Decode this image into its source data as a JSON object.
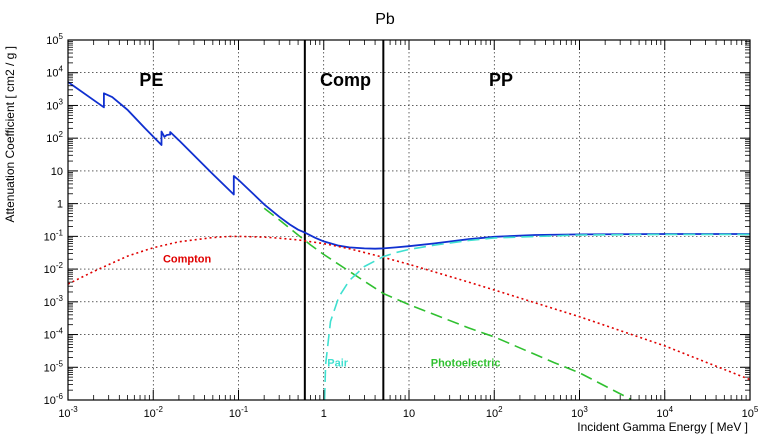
{
  "chart_data": {
    "type": "line",
    "title": "Pb",
    "xlabel": "Incident Gamma Energy [ MeV ]",
    "ylabel": "Attenuation Coefficient [ cm2 / g ]",
    "x_scale": "log",
    "y_scale": "log",
    "xlim": [
      0.001,
      100000
    ],
    "ylim": [
      1e-06,
      100000
    ],
    "grid": true,
    "x_ticks": [
      {
        "base": "10",
        "exp": "-3",
        "value": 0.001
      },
      {
        "base": "10",
        "exp": "-2",
        "value": 0.01
      },
      {
        "base": "10",
        "exp": "-1",
        "value": 0.1
      },
      {
        "base": "1",
        "exp": "",
        "value": 1
      },
      {
        "base": "10",
        "exp": "",
        "value": 10
      },
      {
        "base": "10",
        "exp": "2",
        "value": 100
      },
      {
        "base": "10",
        "exp": "3",
        "value": 1000
      },
      {
        "base": "10",
        "exp": "4",
        "value": 10000
      },
      {
        "base": "10",
        "exp": "5",
        "value": 100000
      }
    ],
    "y_ticks": [
      {
        "base": "10",
        "exp": "-6",
        "value": 1e-06
      },
      {
        "base": "10",
        "exp": "-5",
        "value": 1e-05
      },
      {
        "base": "10",
        "exp": "-4",
        "value": 0.0001
      },
      {
        "base": "10",
        "exp": "-3",
        "value": 0.001
      },
      {
        "base": "10",
        "exp": "-2",
        "value": 0.01
      },
      {
        "base": "10",
        "exp": "-1",
        "value": 0.1
      },
      {
        "base": "1",
        "exp": "",
        "value": 1
      },
      {
        "base": "10",
        "exp": "",
        "value": 10
      },
      {
        "base": "10",
        "exp": "2",
        "value": 100
      },
      {
        "base": "10",
        "exp": "3",
        "value": 1000
      },
      {
        "base": "10",
        "exp": "4",
        "value": 10000
      },
      {
        "base": "10",
        "exp": "5",
        "value": 100000
      }
    ],
    "region_boundaries_mev": [
      0.6,
      5
    ],
    "region_labels": [
      {
        "text": "PE",
        "x": 0.0095,
        "y": 4000
      },
      {
        "text": "Comp",
        "x": 1.8,
        "y": 4000
      },
      {
        "text": "PP",
        "x": 120,
        "y": 4000
      }
    ],
    "series": [
      {
        "name": "Total",
        "color": "#1030d0",
        "style": "solid",
        "label": "",
        "points": [
          [
            0.001,
            5200
          ],
          [
            0.00264,
            880
          ],
          [
            0.00264,
            2350
          ],
          [
            0.0033,
            1800
          ],
          [
            0.005,
            730
          ],
          [
            0.008,
            200
          ],
          [
            0.0125,
            62
          ],
          [
            0.0125,
            160
          ],
          [
            0.0135,
            110
          ],
          [
            0.0144,
            125
          ],
          [
            0.0158,
            130
          ],
          [
            0.0158,
            155
          ],
          [
            0.02,
            86
          ],
          [
            0.03,
            30
          ],
          [
            0.05,
            8.0
          ],
          [
            0.088,
            1.9
          ],
          [
            0.088,
            7.0
          ],
          [
            0.1,
            5.3
          ],
          [
            0.15,
            1.95
          ],
          [
            0.2,
            0.95
          ],
          [
            0.3,
            0.4
          ],
          [
            0.4,
            0.23
          ],
          [
            0.5,
            0.16
          ],
          [
            0.6,
            0.13
          ],
          [
            0.8,
            0.09
          ],
          [
            1.0,
            0.07
          ],
          [
            1.5,
            0.052
          ],
          [
            2.0,
            0.046
          ],
          [
            3.0,
            0.043
          ],
          [
            4.0,
            0.042
          ],
          [
            5.0,
            0.043
          ],
          [
            7.0,
            0.046
          ],
          [
            10,
            0.05
          ],
          [
            20,
            0.061
          ],
          [
            50,
            0.082
          ],
          [
            100,
            0.097
          ],
          [
            300,
            0.11
          ],
          [
            1000,
            0.115
          ],
          [
            10000,
            0.118
          ],
          [
            100000,
            0.118
          ]
        ]
      },
      {
        "name": "Compton",
        "color": "#e00000",
        "style": "dotted",
        "label": "Compton",
        "label_at": [
          0.013,
          0.016
        ],
        "points": [
          [
            0.001,
            0.0035
          ],
          [
            0.002,
            0.0085
          ],
          [
            0.005,
            0.025
          ],
          [
            0.01,
            0.045
          ],
          [
            0.02,
            0.068
          ],
          [
            0.05,
            0.092
          ],
          [
            0.08,
            0.1
          ],
          [
            0.1,
            0.1
          ],
          [
            0.2,
            0.095
          ],
          [
            0.3,
            0.088
          ],
          [
            0.5,
            0.078
          ],
          [
            1,
            0.06
          ],
          [
            2,
            0.042
          ],
          [
            5,
            0.023
          ],
          [
            10,
            0.014
          ],
          [
            50,
            0.004
          ],
          [
            100,
            0.0023
          ],
          [
            1000,
            0.00035
          ],
          [
            10000,
            4.5e-05
          ],
          [
            100000,
            4.2e-06
          ]
        ]
      },
      {
        "name": "Photoelectric",
        "color": "#30c030",
        "style": "dashed",
        "label": "Photoelectric",
        "label_at": [
          18,
          1.05e-05
        ],
        "points": [
          [
            0.2,
            0.72
          ],
          [
            0.3,
            0.32
          ],
          [
            0.5,
            0.11
          ],
          [
            0.7,
            0.055
          ],
          [
            1,
            0.028
          ],
          [
            2,
            0.0085
          ],
          [
            5,
            0.0018
          ],
          [
            10,
            0.00082
          ],
          [
            50,
            0.00016
          ],
          [
            100,
            8.5e-05
          ],
          [
            500,
            1.4e-05
          ],
          [
            1000,
            6.8e-06
          ],
          [
            4000,
            1.05e-06
          ]
        ]
      },
      {
        "name": "Pair",
        "color": "#40e0d0",
        "style": "dashed",
        "label": "Pair",
        "label_at": [
          1.1,
          1.05e-05
        ],
        "points": [
          [
            1.022,
            1e-06
          ],
          [
            1.05,
            1.2e-05
          ],
          [
            1.2,
            0.00025
          ],
          [
            1.5,
            0.0014
          ],
          [
            2,
            0.0045
          ],
          [
            3,
            0.012
          ],
          [
            5,
            0.024
          ],
          [
            7,
            0.032
          ],
          [
            10,
            0.04
          ],
          [
            20,
            0.054
          ],
          [
            50,
            0.075
          ],
          [
            100,
            0.09
          ],
          [
            1000,
            0.11
          ],
          [
            10000,
            0.115
          ],
          [
            100000,
            0.115
          ]
        ]
      }
    ]
  }
}
